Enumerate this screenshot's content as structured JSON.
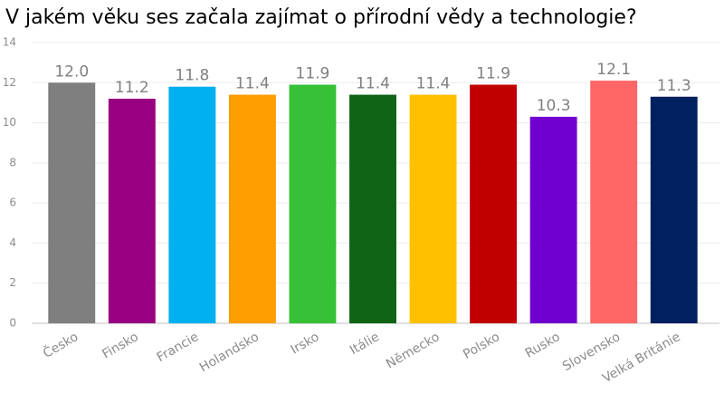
{
  "chart_data": {
    "type": "bar",
    "title": "V jakém věku ses začala zajímat o přírodní vědy a technologie?",
    "categories": [
      "Česko",
      "Finsko",
      "Francie",
      "Holandsko",
      "Irsko",
      "Itálie",
      "Německo",
      "Polsko",
      "Rusko",
      "Slovensko",
      "Velká Británie"
    ],
    "values": [
      12.0,
      11.2,
      11.8,
      11.4,
      11.9,
      11.4,
      11.4,
      11.9,
      10.3,
      12.1,
      11.3
    ],
    "value_labels": [
      "12.0",
      "11.2",
      "11.8",
      "11.4",
      "11.9",
      "11.4",
      "11.4",
      "11.9",
      "10.3",
      "12.1",
      "11.3"
    ],
    "colors": [
      "#7f7f7f",
      "#990080",
      "#00b0f0",
      "#ff9e00",
      "#37c137",
      "#0f6416",
      "#ffc000",
      "#c00000",
      "#7000d0",
      "#ff6666",
      "#002060"
    ],
    "ylim": [
      0,
      14
    ],
    "yticks": [
      0,
      2,
      4,
      6,
      8,
      10,
      12,
      14
    ],
    "grid": true
  }
}
